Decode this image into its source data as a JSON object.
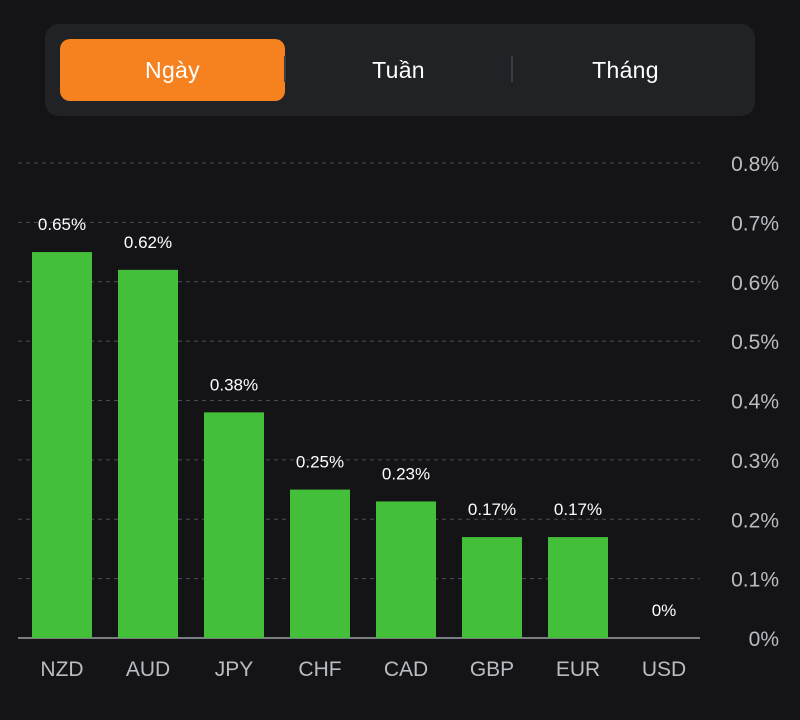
{
  "tabs": [
    {
      "label": "Ngày",
      "active": true
    },
    {
      "label": "Tuần",
      "active": false
    },
    {
      "label": "Tháng",
      "active": false
    }
  ],
  "colors": {
    "accent": "#f5811f",
    "bar": "#44bf3a",
    "background": "#141417",
    "panel": "#202226",
    "grid": "#4a4d52"
  },
  "chart_data": {
    "type": "bar",
    "categories": [
      "NZD",
      "AUD",
      "JPY",
      "CHF",
      "CAD",
      "GBP",
      "EUR",
      "USD"
    ],
    "values": [
      0.65,
      0.62,
      0.38,
      0.25,
      0.23,
      0.17,
      0.17,
      0
    ],
    "value_labels": [
      "0.65%",
      "0.62%",
      "0.38%",
      "0.25%",
      "0.23%",
      "0.17%",
      "0.17%",
      "0%"
    ],
    "ylim": [
      0,
      0.8
    ],
    "yticks": [
      0,
      0.1,
      0.2,
      0.3,
      0.4,
      0.5,
      0.6,
      0.7,
      0.8
    ],
    "ytick_labels": [
      "0%",
      "0.1%",
      "0.2%",
      "0.3%",
      "0.4%",
      "0.5%",
      "0.6%",
      "0.7%",
      "0.8%"
    ],
    "y_axis_position": "right",
    "grid": true,
    "grid_style": "dashed"
  }
}
